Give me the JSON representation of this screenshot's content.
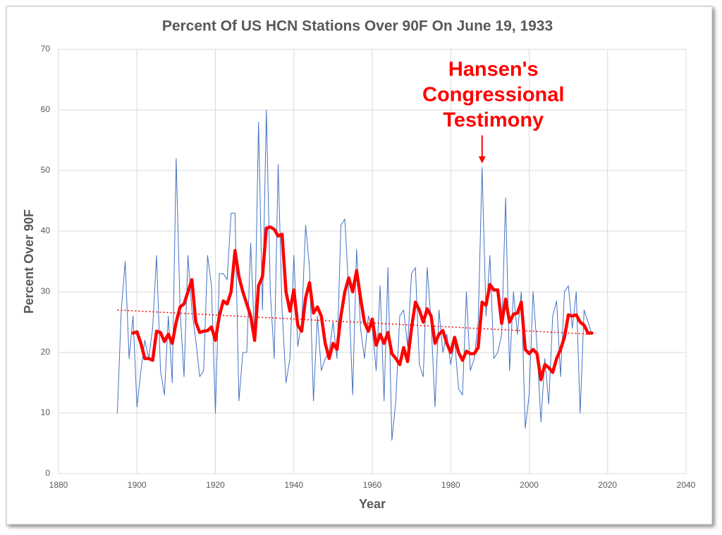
{
  "chart_data": {
    "type": "line",
    "title": "Percent Of US HCN Stations Over 90F On June 19, 1933",
    "xlabel": "Year",
    "ylabel": "Percent Over 90F",
    "x": [
      1895,
      1896,
      1897,
      1898,
      1899,
      1900,
      1901,
      1902,
      1903,
      1904,
      1905,
      1906,
      1907,
      1908,
      1909,
      1910,
      1911,
      1912,
      1913,
      1914,
      1915,
      1916,
      1917,
      1918,
      1919,
      1920,
      1921,
      1922,
      1923,
      1924,
      1925,
      1926,
      1927,
      1928,
      1929,
      1930,
      1931,
      1932,
      1933,
      1934,
      1935,
      1936,
      1937,
      1938,
      1939,
      1940,
      1941,
      1942,
      1943,
      1944,
      1945,
      1946,
      1947,
      1948,
      1949,
      1950,
      1951,
      1952,
      1953,
      1954,
      1955,
      1956,
      1957,
      1958,
      1959,
      1960,
      1961,
      1962,
      1963,
      1964,
      1965,
      1966,
      1967,
      1968,
      1969,
      1970,
      1971,
      1972,
      1973,
      1974,
      1975,
      1976,
      1977,
      1978,
      1979,
      1980,
      1981,
      1982,
      1983,
      1984,
      1985,
      1986,
      1987,
      1988,
      1989,
      1990,
      1991,
      1992,
      1993,
      1994,
      1995,
      1996,
      1997,
      1998,
      1999,
      2000,
      2001,
      2002,
      2003,
      2004,
      2005,
      2006,
      2007,
      2008,
      2009,
      2010,
      2011,
      2012,
      2013,
      2014,
      2015,
      2016
    ],
    "series": [
      {
        "color": "#4472c4",
        "width": 1,
        "values": [
          10,
          27,
          35,
          19,
          26,
          11,
          17,
          22,
          19,
          24,
          36,
          17,
          13,
          26,
          15,
          52,
          27,
          16,
          36,
          27,
          22,
          16,
          17,
          36,
          31,
          10,
          33,
          33,
          32,
          43,
          43,
          12,
          20,
          20,
          38,
          22,
          58,
          27,
          60,
          30,
          19,
          51,
          27,
          15,
          19,
          36,
          21,
          25,
          41,
          34,
          12,
          26,
          17,
          19,
          20,
          25,
          19,
          41,
          42,
          30,
          13,
          37,
          24,
          19,
          26,
          24,
          17,
          31,
          12,
          34,
          5.5,
          12,
          26,
          27,
          21,
          33,
          34,
          18,
          16,
          34,
          25,
          11,
          27,
          20,
          23,
          18,
          22,
          14,
          13,
          30,
          17,
          19,
          25,
          50.5,
          26,
          36,
          19,
          20,
          23,
          45.5,
          17,
          30,
          23,
          30,
          7.5,
          13,
          30,
          21,
          8.5,
          19,
          11.5,
          26,
          28.5,
          16,
          30,
          31,
          24,
          30,
          10,
          27,
          25,
          23
        ]
      },
      {
        "color": "#ff0000",
        "width": 4.5,
        "values": [
          null,
          null,
          null,
          null,
          23.2,
          23.4,
          21.5,
          19,
          19,
          18.7,
          23.5,
          23.3,
          21.8,
          23,
          21.5,
          25,
          27.5,
          28,
          30,
          32,
          25,
          23.3,
          23.5,
          23.6,
          24.2,
          22,
          26,
          28.5,
          28,
          30,
          36.8,
          32.5,
          30,
          28,
          26,
          22,
          31,
          32.5,
          40.5,
          40.7,
          40.3,
          39.2,
          39.5,
          30,
          26.8,
          30.3,
          24.5,
          23.5,
          29,
          31.5,
          26.5,
          27.5,
          26,
          21.5,
          19,
          21.5,
          20.5,
          26,
          30,
          32.3,
          30,
          33.5,
          29,
          25,
          23.5,
          25.5,
          21.2,
          23,
          21.5,
          23.3,
          19.8,
          19,
          18,
          20.8,
          18.5,
          24,
          28.3,
          27,
          25,
          27.2,
          26,
          21.5,
          23,
          23.6,
          21.5,
          20,
          22.5,
          20,
          18.7,
          20.2,
          19.8,
          19.8,
          20.8,
          28.3,
          27.8,
          31.2,
          30.3,
          30.3,
          24.8,
          28.8,
          25,
          26.3,
          26.5,
          28.3,
          20.5,
          19.8,
          20.5,
          19.8,
          15.5,
          18,
          17.5,
          16.7,
          19,
          20.5,
          22.5,
          26.2,
          26,
          26.2,
          25,
          24.5,
          23.2,
          23.2
        ]
      },
      {
        "color": "#ff0000",
        "width": 1.5,
        "dashed": true,
        "x": [
          1895,
          2016
        ],
        "values": [
          27,
          23
        ]
      }
    ],
    "annotation": {
      "lines": [
        "Hansen's",
        "Congressional",
        "Testimony"
      ],
      "x": 1988,
      "color": "#ff0000"
    },
    "xlim": [
      1880,
      2040
    ],
    "xticks": [
      1880,
      1900,
      1920,
      1940,
      1960,
      1980,
      2000,
      2020,
      2040
    ],
    "ylim": [
      0,
      70
    ],
    "yticks": [
      0,
      10,
      20,
      30,
      40,
      50,
      60,
      70
    ],
    "grid": true
  }
}
